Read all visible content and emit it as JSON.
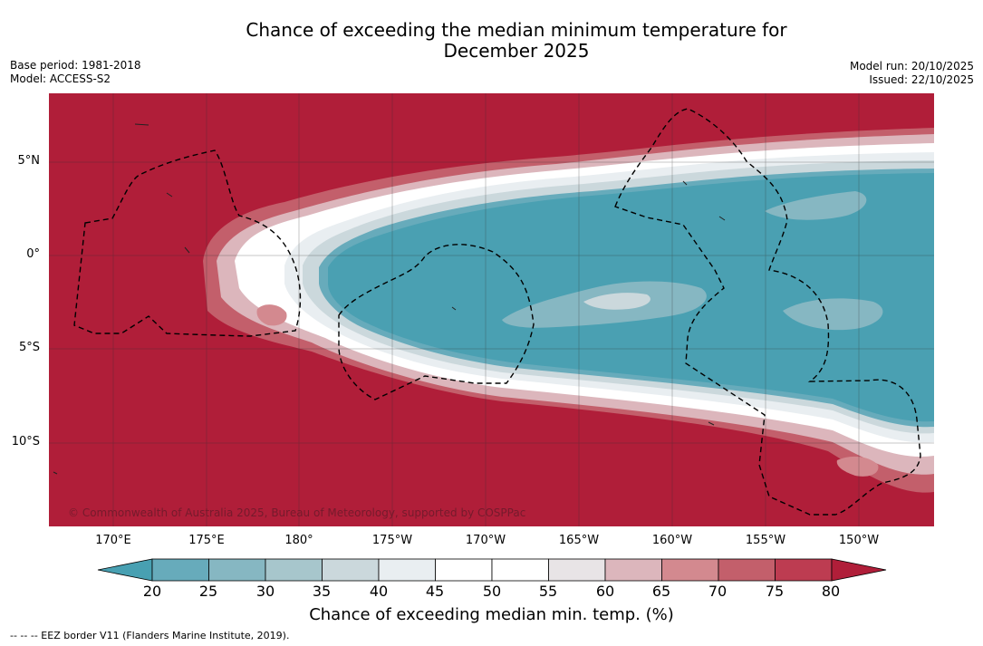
{
  "title_line1": "Chance of exceeding the median minimum temperature for",
  "title_line2": "December 2025",
  "meta": {
    "base_period": "Base period: 1981-2018",
    "model": "Model: ACCESS-S2",
    "model_run": "Model run: 20/10/2025",
    "issued": "Issued: 22/10/2025"
  },
  "map": {
    "lat_labels": [
      "5°N",
      "0°",
      "5°S",
      "10°S"
    ],
    "lon_labels": [
      "170°E",
      "175°E",
      "180°",
      "175°W",
      "170°W",
      "165°W",
      "160°W",
      "155°W",
      "150°W"
    ],
    "copyright": "© Commonwealth of Australia 2025, Bureau of Meteorology, supported by COSPPac",
    "background_color": "#b01e39",
    "cool_color": "#4aa0b2"
  },
  "colorbar": {
    "ticks": [
      "20",
      "25",
      "30",
      "35",
      "40",
      "45",
      "50",
      "55",
      "60",
      "65",
      "70",
      "75",
      "80"
    ],
    "colors": [
      "#48a0b2",
      "#67abbb",
      "#86b7c2",
      "#a7c6cc",
      "#cbd8dc",
      "#e9eef1",
      "#ffffff",
      "#ffffff",
      "#e8e4e6",
      "#dcb6bc",
      "#d3898f",
      "#c35f6b",
      "#bd3c51",
      "#b01e39"
    ],
    "label": "Chance of exceeding median min. temp. (%)"
  },
  "footer": "--  --  -- EEZ border V11 (Flanders Marine Institute, 2019)."
}
